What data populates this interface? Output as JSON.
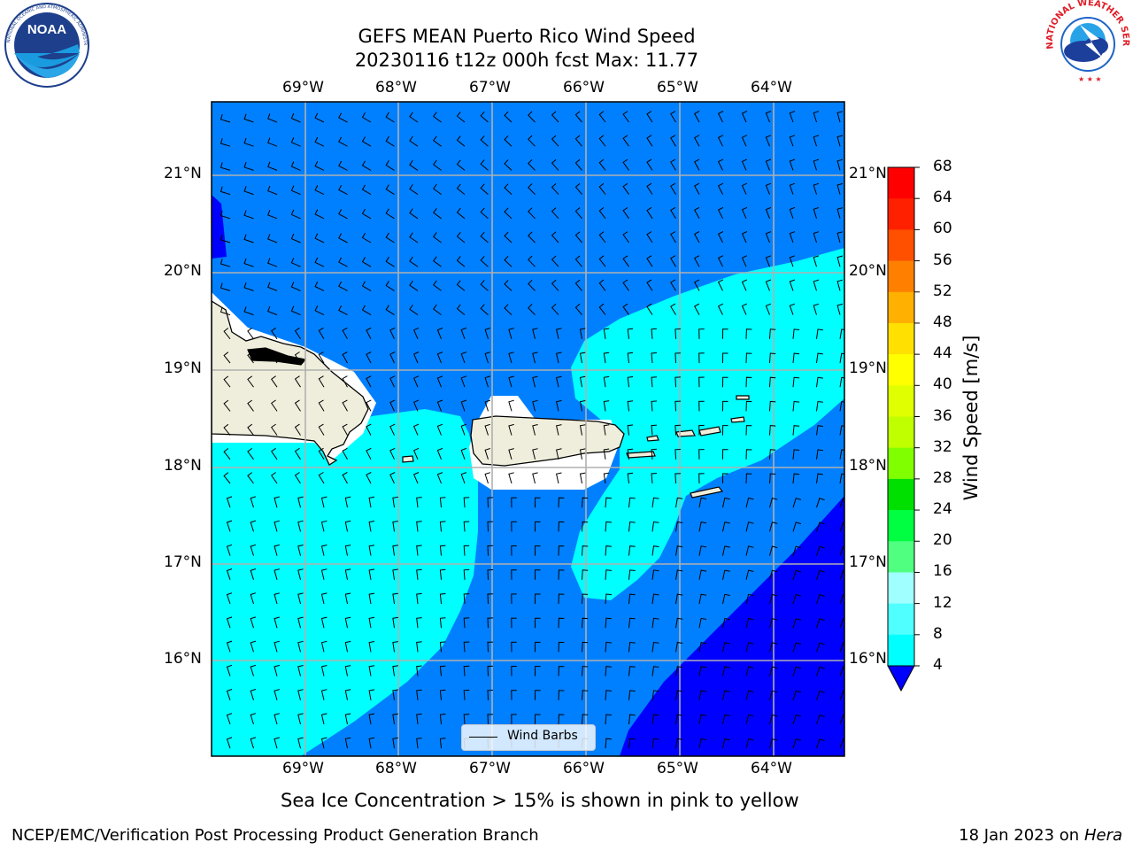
{
  "header": {
    "title_line1": "GEFS MEAN Puerto Rico Wind Speed",
    "title_line2": "20230116 t12z 000h fcst   Max: 11.77"
  },
  "logos": {
    "noaa_text": "NOAA",
    "noaa_ring_text": "NATIONAL OCEANIC AND ATMOSPHERIC ADMINISTRATION · U.S. DEPARTMENT OF COMMERCE",
    "nws_ring_text": "NATIONAL WEATHER SERVICE"
  },
  "map": {
    "lon_labels": [
      "69°W",
      "68°W",
      "67°W",
      "66°W",
      "65°W",
      "64°W"
    ],
    "lat_labels": [
      "21°N",
      "20°N",
      "19°N",
      "18°N",
      "17°N",
      "16°N"
    ],
    "legend_label": "Wind Barbs",
    "colors": {
      "ocean_4_8": "#0080ff",
      "ocean_8_12": "#00ffff",
      "ocean_below_4": "#0000ff",
      "land": "#efeedc",
      "grid": "#b0b0b0"
    }
  },
  "colorbar": {
    "label": "Wind Speed [m/s]",
    "ticks": [
      "68",
      "64",
      "60",
      "56",
      "52",
      "48",
      "44",
      "40",
      "36",
      "32",
      "28",
      "24",
      "20",
      "16",
      "12",
      "8",
      "4"
    ],
    "colors": [
      "#ff0000",
      "#ff2000",
      "#ff5000",
      "#ff8000",
      "#ffb000",
      "#ffe000",
      "#ffff00",
      "#e0ff00",
      "#c0ff00",
      "#80ff00",
      "#00e000",
      "#00ff40",
      "#50ff80",
      "#a0ffff",
      "#50ffff",
      "#00ffff",
      "#0080ff"
    ],
    "under_color": "#0000ff"
  },
  "footer": {
    "subtitle": "Sea Ice Concentration > 15% is shown in pink to yellow",
    "left": "NCEP/EMC/Verification Post Processing Product Generation Branch",
    "date": "18 Jan 2023 on ",
    "machine": "Hera"
  }
}
